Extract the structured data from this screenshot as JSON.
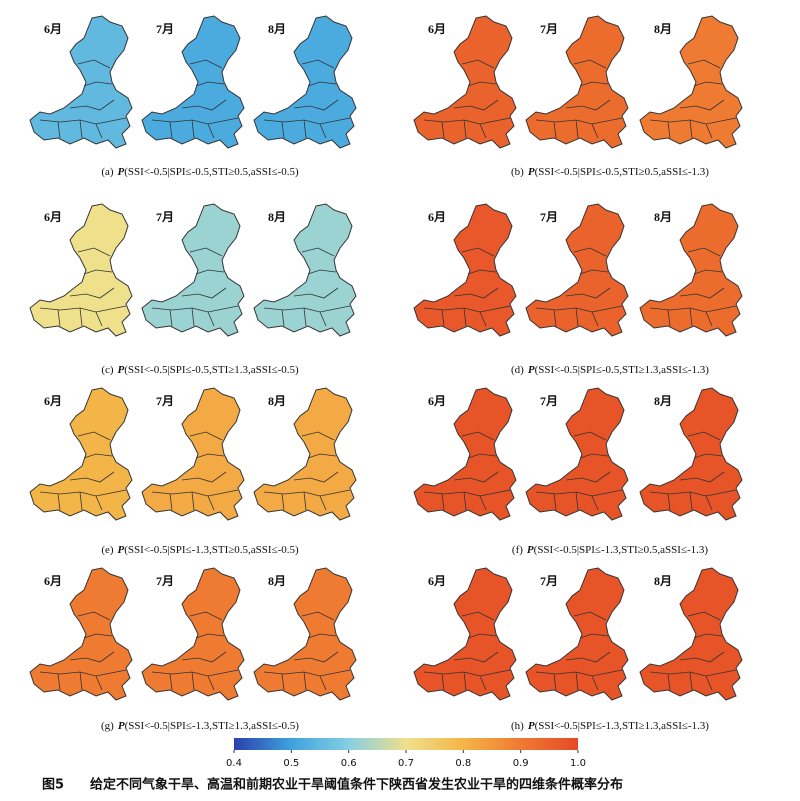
{
  "panels": [
    {
      "tag": "(a)",
      "func": "P",
      "expr": "(SSI<-0.5|SPI≤-0.5,STI≥0.5,aSSI≤-0.5)",
      "maps": [
        {
          "month": "6月",
          "value": 0.55
        },
        {
          "month": "7月",
          "value": 0.52
        },
        {
          "month": "8月",
          "value": 0.52
        }
      ]
    },
    {
      "tag": "(b)",
      "func": "P",
      "expr": "(SSI<-0.5|SPI≤-0.5,STI≥0.5,aSSI≤-1.3)",
      "maps": [
        {
          "month": "6月",
          "value": 0.95
        },
        {
          "month": "7月",
          "value": 0.93
        },
        {
          "month": "8月",
          "value": 0.9
        }
      ]
    },
    {
      "tag": "(c)",
      "func": "P",
      "expr": "(SSI<-0.5|SPI≤-0.5,STI≥1.3,aSSI≤-0.5)",
      "maps": [
        {
          "month": "6月",
          "value": 0.7
        },
        {
          "month": "7月",
          "value": 0.62
        },
        {
          "month": "8月",
          "value": 0.62
        }
      ]
    },
    {
      "tag": "(d)",
      "func": "P",
      "expr": "(SSI<-0.5|SPI≤-0.5,STI≥1.3,aSSI≤-1.3)",
      "maps": [
        {
          "month": "6月",
          "value": 0.97
        },
        {
          "month": "7月",
          "value": 0.95
        },
        {
          "month": "8月",
          "value": 0.93
        }
      ]
    },
    {
      "tag": "(e)",
      "func": "P",
      "expr": "(SSI<-0.5|SPI≤-1.3,STI≥0.5,aSSI≤-0.5)",
      "maps": [
        {
          "month": "6月",
          "value": 0.8
        },
        {
          "month": "7月",
          "value": 0.82
        },
        {
          "month": "8月",
          "value": 0.82
        }
      ]
    },
    {
      "tag": "(f)",
      "func": "P",
      "expr": "(SSI<-0.5|SPI≤-1.3,STI≥0.5,aSSI≤-1.3)",
      "maps": [
        {
          "month": "6月",
          "value": 0.98
        },
        {
          "month": "7月",
          "value": 0.98
        },
        {
          "month": "8月",
          "value": 0.98
        }
      ]
    },
    {
      "tag": "(g)",
      "func": "P",
      "expr": "(SSI<-0.5|SPI≤-1.3,STI≥1.3,aSSI≤-0.5)",
      "maps": [
        {
          "month": "6月",
          "value": 0.9
        },
        {
          "month": "7月",
          "value": 0.9
        },
        {
          "month": "8月",
          "value": 0.9
        }
      ]
    },
    {
      "tag": "(h)",
      "func": "P",
      "expr": "(SSI<-0.5|SPI≤-1.3,STI≥1.3,aSSI≤-1.3)",
      "maps": [
        {
          "month": "6月",
          "value": 0.98
        },
        {
          "month": "7月",
          "value": 0.98
        },
        {
          "month": "8月",
          "value": 0.98
        }
      ]
    }
  ],
  "colorbar": {
    "lim": [
      0.4,
      1
    ],
    "ticks": [
      0.4,
      0.5,
      0.6,
      0.7,
      0.8,
      0.9,
      {
        "value": 1,
        "label": "1.0"
      }
    ],
    "cmap": [
      "#2b3fb0",
      "#3ea2dc",
      "#86cfe4",
      "#efe08c",
      "#f4b548",
      "#ef7a32",
      "#e54a26"
    ]
  },
  "caption": {
    "label": "图5",
    "text": "给定不同气象干旱、高温和前期农业干旱阈值条件下陕西省发生农业干旱的四维条件概率分布"
  }
}
